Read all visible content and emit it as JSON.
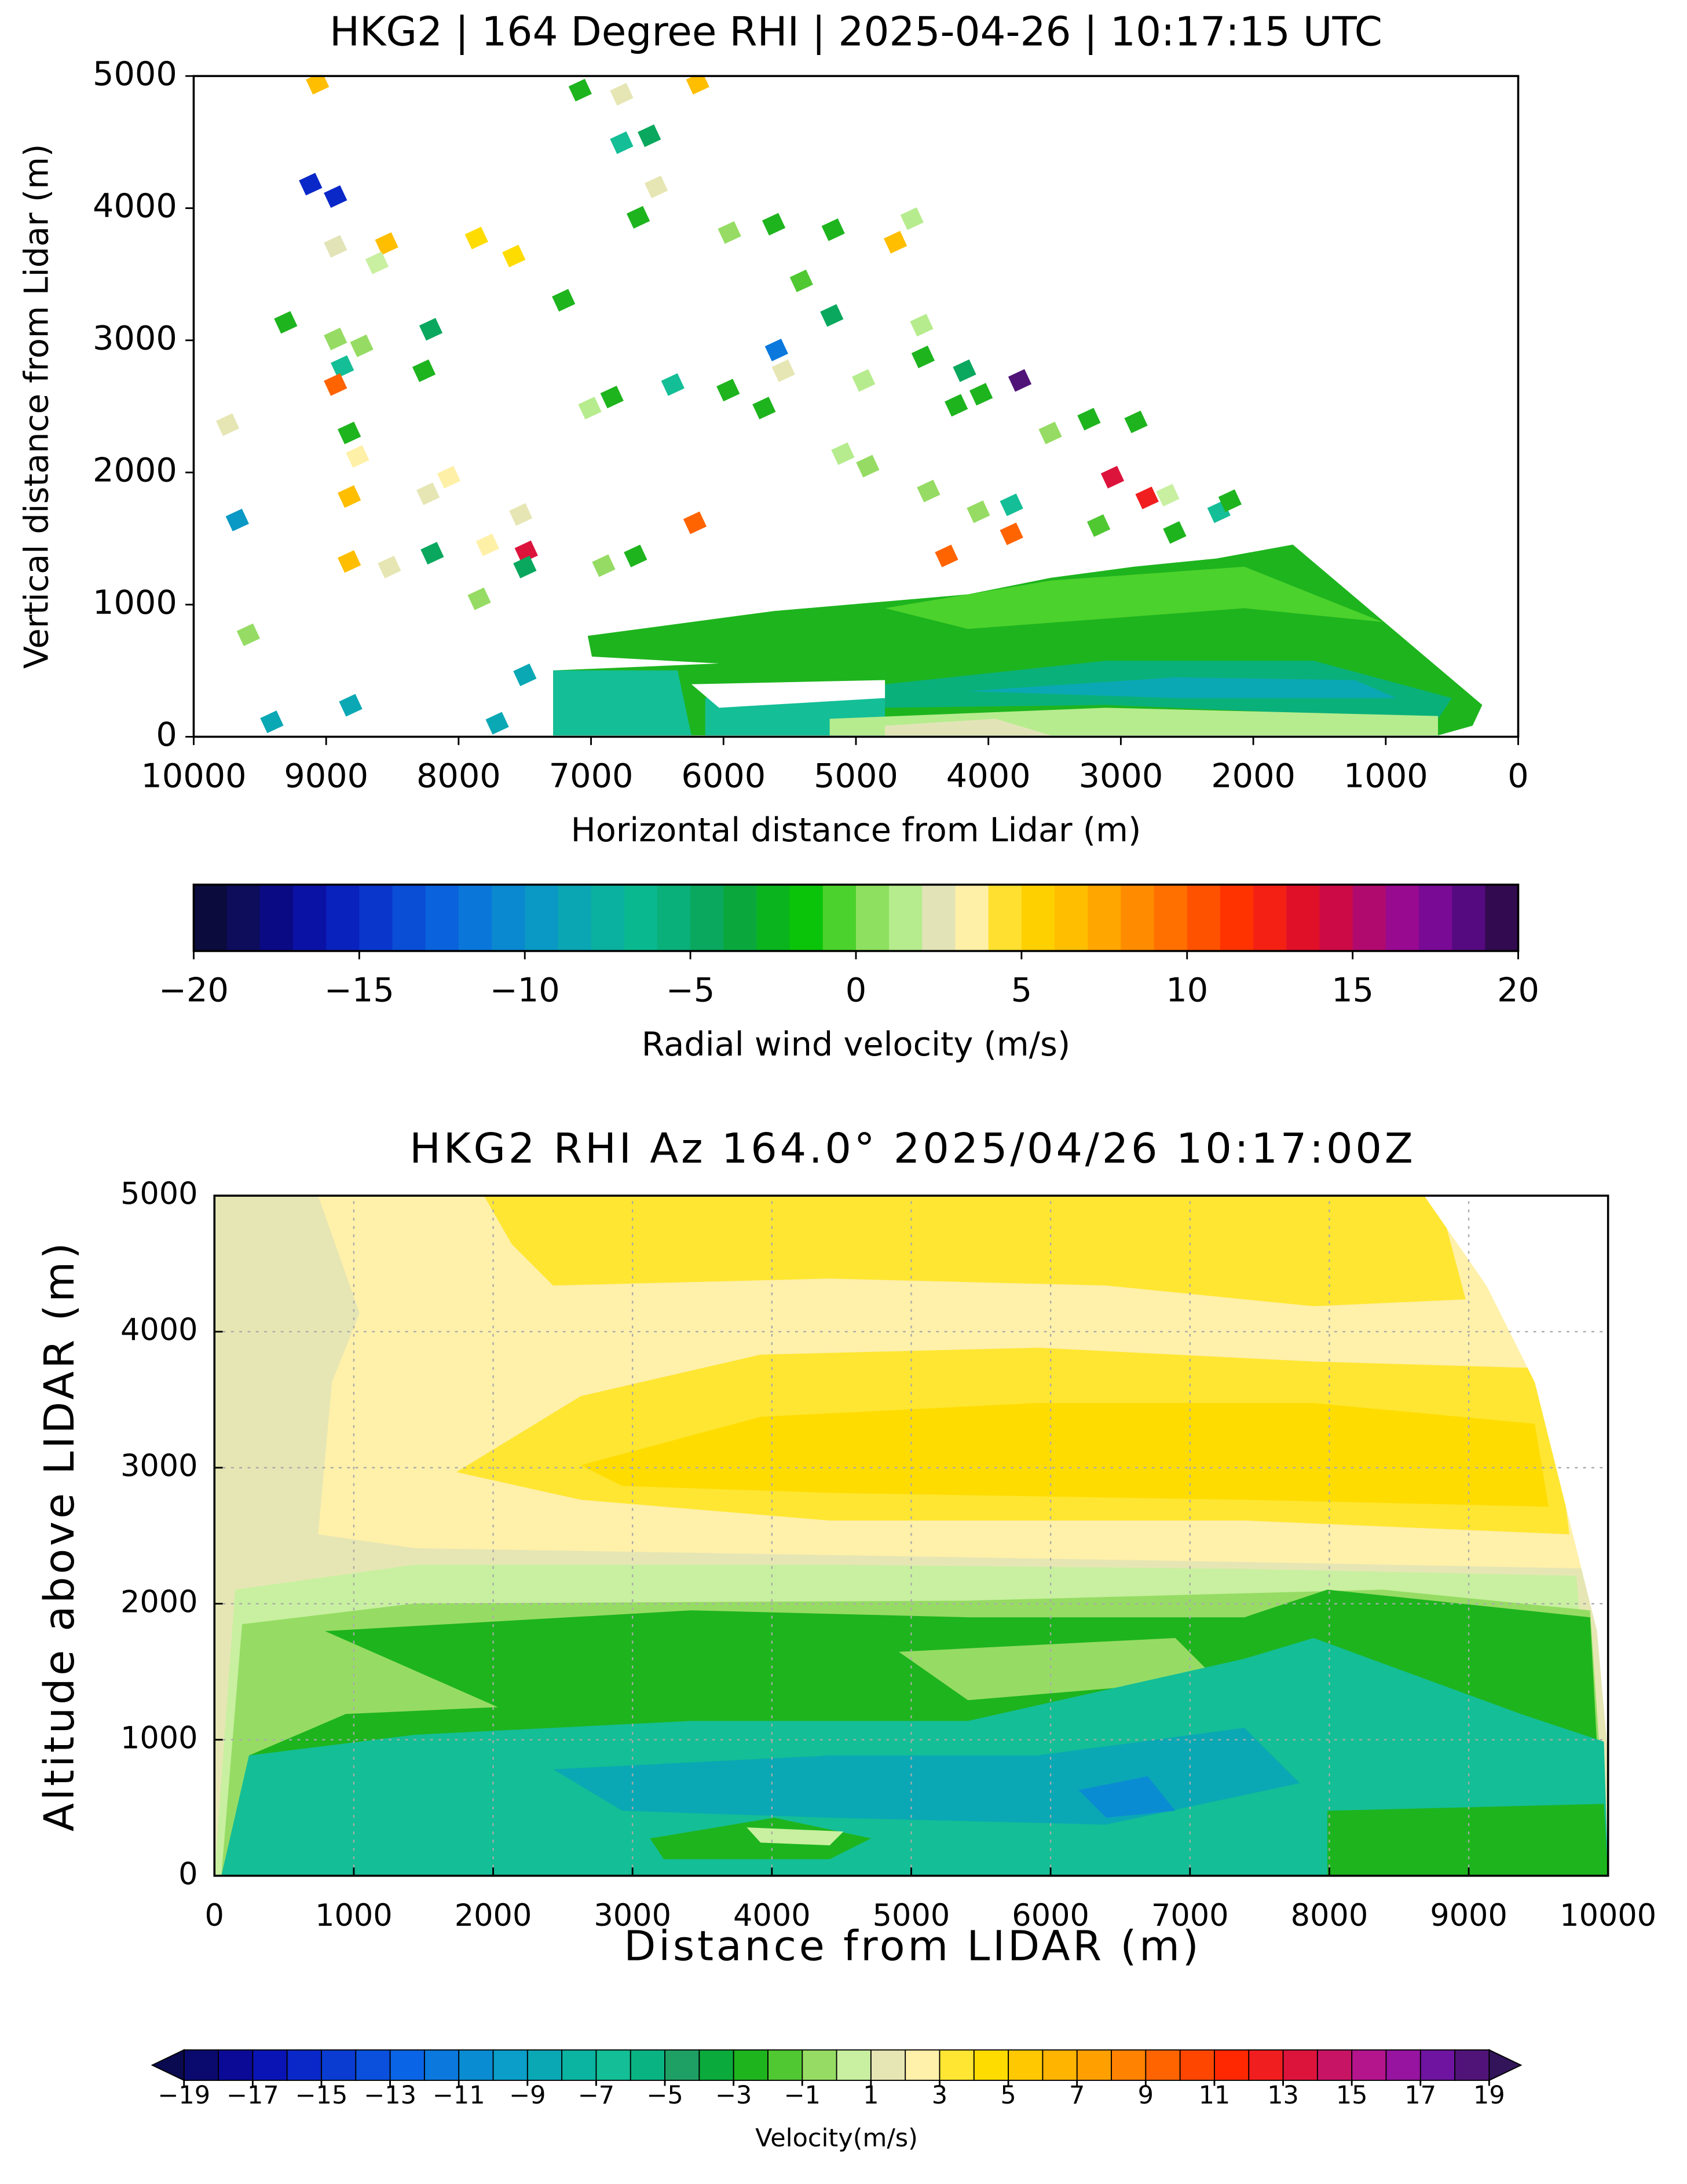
{
  "chart_data": [
    {
      "type": "heatmap",
      "title": "HKG2 | 164 Degree RHI | 2025-04-26 | 10:17:15 UTC",
      "xlabel": "Horizontal distance from Lidar (m)",
      "ylabel": "Vertical distance from Lidar (m)",
      "xlim": [
        10000,
        0
      ],
      "xticks": [
        10000,
        9000,
        8000,
        7000,
        6000,
        5000,
        4000,
        3000,
        2000,
        1000,
        0
      ],
      "ylim": [
        0,
        5000
      ],
      "yticks": [
        0,
        1000,
        2000,
        3000,
        4000,
        5000
      ],
      "grid": false,
      "colorbar": {
        "label": "Radial wind velocity (m/s)",
        "clim": [
          -20,
          20
        ],
        "ticks": [
          {
            "value": -20,
            "label": "−20"
          },
          {
            "value": -15,
            "label": "−15"
          },
          {
            "value": -10,
            "label": "−10"
          },
          {
            "value": -5,
            "label": "−5"
          },
          0,
          5,
          10,
          15,
          20
        ],
        "colors": [
          "#0b0b3d",
          "#0d0d5c",
          "#0a0a85",
          "#0a12a6",
          "#0a22bd",
          "#0a36cc",
          "#0a4ed6",
          "#0a62dc",
          "#0a76da",
          "#0a88d0",
          "#0a98c4",
          "#0aa6b4",
          "#0ab0a0",
          "#0ab890",
          "#0ab07a",
          "#0aa85e",
          "#0aa83c",
          "#0ab41e",
          "#0ac40a",
          "#4cd22c",
          "#8ee060",
          "#b6ec8e",
          "#e2e4b8",
          "#fff0a8",
          "#ffe030",
          "#ffd000",
          "#ffbe00",
          "#ffa600",
          "#ff8c00",
          "#ff7000",
          "#ff5200",
          "#ff3300",
          "#f42014",
          "#e01028",
          "#cc0a46",
          "#b00a6e",
          "#980a90",
          "#780a96",
          "#560a80",
          "#320a50"
        ]
      }
    },
    {
      "type": "contour",
      "title": "HKG2 RHI Az 164.0° 2025/04/26 10:17:00Z",
      "xlabel": "Distance from LIDAR (m)",
      "ylabel": "Altitude above LIDAR (m)",
      "xlim": [
        0,
        10000
      ],
      "xticks": [
        0,
        1000,
        2000,
        3000,
        4000,
        5000,
        6000,
        7000,
        8000,
        9000,
        10000
      ],
      "ylim": [
        0,
        5000
      ],
      "yticks": [
        0,
        1000,
        2000,
        3000,
        4000,
        5000
      ],
      "grid": true,
      "colorbar": {
        "label": "Velocity(m/s)",
        "clim": [
          -19,
          19
        ],
        "ticks": [
          {
            "value": -19,
            "label": "−19"
          },
          {
            "value": -17,
            "label": "−17"
          },
          {
            "value": -15,
            "label": "−15"
          },
          {
            "value": -13,
            "label": "−13"
          },
          {
            "value": -11,
            "label": "−11"
          },
          {
            "value": -9,
            "label": "−9"
          },
          {
            "value": -7,
            "label": "−7"
          },
          {
            "value": -5,
            "label": "−5"
          },
          {
            "value": -3,
            "label": "−3"
          },
          {
            "value": -1,
            "label": "−1"
          },
          1,
          3,
          5,
          7,
          9,
          11,
          13,
          15,
          17,
          19
        ],
        "under_color": "#0a0a50",
        "over_color": "#32145a",
        "colors": [
          "#0a0a6e",
          "#0a0a96",
          "#0a14b4",
          "#0a28c8",
          "#0a3cd2",
          "#0a50dc",
          "#0a64e6",
          "#0a78dc",
          "#0a8cd2",
          "#0a9ec8",
          "#0aa8b4",
          "#0ab4a0",
          "#14be96",
          "#0ab482",
          "#1ea064",
          "#0aaa3c",
          "#1eb41e",
          "#50c832",
          "#96dc64",
          "#c8f0a0",
          "#e6e6b4",
          "#fff0aa",
          "#ffe632",
          "#ffdc00",
          "#ffc800",
          "#ffb400",
          "#ffa000",
          "#ff8200",
          "#ff6400",
          "#ff4600",
          "#ff2800",
          "#f01e1e",
          "#dc143c",
          "#c81464",
          "#b4148c",
          "#9614a0",
          "#6e14a0",
          "#501478"
        ]
      }
    }
  ]
}
